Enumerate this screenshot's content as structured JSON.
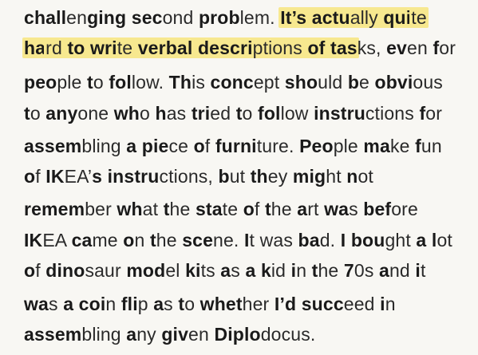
{
  "paragraph": {
    "lines": [
      [
        {
          "t": "chall",
          "b": true
        },
        {
          "t": "en",
          "b": false
        },
        {
          "t": "ging ",
          "b": true
        },
        {
          "t": "sec",
          "b": true
        },
        {
          "t": "ond ",
          "b": false
        },
        {
          "t": "prob",
          "b": true
        },
        {
          "t": "lem. ",
          "b": false
        },
        {
          "t": "It’s ",
          "b": true,
          "h": true
        },
        {
          "t": "actu",
          "b": true,
          "h": true
        },
        {
          "t": "ally ",
          "b": false,
          "h": true
        },
        {
          "t": "qui",
          "b": true,
          "h": true
        },
        {
          "t": "te",
          "b": false,
          "h": true
        }
      ],
      [
        {
          "t": "ha",
          "b": true,
          "h": true
        },
        {
          "t": "rd ",
          "b": false,
          "h": true
        },
        {
          "t": "to ",
          "b": true,
          "h": true
        },
        {
          "t": "wri",
          "b": true,
          "h": true
        },
        {
          "t": "te ",
          "b": false,
          "h": true
        },
        {
          "t": "verbal ",
          "b": true,
          "h": true
        },
        {
          "t": "descri",
          "b": true,
          "h": true
        },
        {
          "t": "ptions ",
          "b": false,
          "h": true
        },
        {
          "t": "of ",
          "b": true,
          "h": true
        },
        {
          "t": "tas",
          "b": true,
          "h": true
        },
        {
          "t": "ks, ",
          "b": false
        },
        {
          "t": "ev",
          "b": true
        },
        {
          "t": "en ",
          "b": false
        },
        {
          "t": "f",
          "b": true
        },
        {
          "t": "or",
          "b": false
        }
      ],
      [
        {
          "t": "peo",
          "b": true
        },
        {
          "t": "ple ",
          "b": false
        },
        {
          "t": "t",
          "b": true
        },
        {
          "t": "o ",
          "b": false
        },
        {
          "t": "fol",
          "b": true
        },
        {
          "t": "low. ",
          "b": false
        },
        {
          "t": "Th",
          "b": true
        },
        {
          "t": "is ",
          "b": false
        },
        {
          "t": "conc",
          "b": true
        },
        {
          "t": "ept ",
          "b": false
        },
        {
          "t": "sho",
          "b": true
        },
        {
          "t": "uld ",
          "b": false
        },
        {
          "t": "b",
          "b": true
        },
        {
          "t": "e ",
          "b": false
        },
        {
          "t": "obvi",
          "b": true
        },
        {
          "t": "ous",
          "b": false
        }
      ],
      [
        {
          "t": "t",
          "b": true
        },
        {
          "t": "o ",
          "b": false
        },
        {
          "t": "any",
          "b": true
        },
        {
          "t": "one ",
          "b": false
        },
        {
          "t": "wh",
          "b": true
        },
        {
          "t": "o ",
          "b": false
        },
        {
          "t": "h",
          "b": true
        },
        {
          "t": "as ",
          "b": false
        },
        {
          "t": "tri",
          "b": true
        },
        {
          "t": "ed ",
          "b": false
        },
        {
          "t": "t",
          "b": true
        },
        {
          "t": "o ",
          "b": false
        },
        {
          "t": "fol",
          "b": true
        },
        {
          "t": "low ",
          "b": false
        },
        {
          "t": "instru",
          "b": true
        },
        {
          "t": "ctions ",
          "b": false
        },
        {
          "t": "f",
          "b": true
        },
        {
          "t": "or",
          "b": false
        }
      ],
      [
        {
          "t": "assem",
          "b": true
        },
        {
          "t": "bling ",
          "b": false
        },
        {
          "t": "a ",
          "b": true
        },
        {
          "t": "pie",
          "b": true
        },
        {
          "t": "ce ",
          "b": false
        },
        {
          "t": "o",
          "b": true
        },
        {
          "t": "f ",
          "b": false
        },
        {
          "t": "furni",
          "b": true
        },
        {
          "t": "ture. ",
          "b": false
        },
        {
          "t": "Peo",
          "b": true
        },
        {
          "t": "ple ",
          "b": false
        },
        {
          "t": "ma",
          "b": true
        },
        {
          "t": "ke ",
          "b": false
        },
        {
          "t": "f",
          "b": true
        },
        {
          "t": "un",
          "b": false
        }
      ],
      [
        {
          "t": "o",
          "b": true
        },
        {
          "t": "f ",
          "b": false
        },
        {
          "t": "IK",
          "b": true
        },
        {
          "t": "EA’",
          "b": false
        },
        {
          "t": "s ",
          "b": true
        },
        {
          "t": "instru",
          "b": true
        },
        {
          "t": "ctions, ",
          "b": false
        },
        {
          "t": "b",
          "b": true
        },
        {
          "t": "ut ",
          "b": false
        },
        {
          "t": "th",
          "b": true
        },
        {
          "t": "ey ",
          "b": false
        },
        {
          "t": "mig",
          "b": true
        },
        {
          "t": "ht ",
          "b": false
        },
        {
          "t": "n",
          "b": true
        },
        {
          "t": "ot",
          "b": false
        }
      ],
      [
        {
          "t": "remem",
          "b": true
        },
        {
          "t": "ber ",
          "b": false
        },
        {
          "t": "wh",
          "b": true
        },
        {
          "t": "at ",
          "b": false
        },
        {
          "t": "t",
          "b": true
        },
        {
          "t": "he ",
          "b": false
        },
        {
          "t": "sta",
          "b": true
        },
        {
          "t": "te ",
          "b": false
        },
        {
          "t": "o",
          "b": true
        },
        {
          "t": "f ",
          "b": false
        },
        {
          "t": "t",
          "b": true
        },
        {
          "t": "he ",
          "b": false
        },
        {
          "t": "a",
          "b": true
        },
        {
          "t": "rt ",
          "b": false
        },
        {
          "t": "wa",
          "b": true
        },
        {
          "t": "s ",
          "b": false
        },
        {
          "t": "bef",
          "b": true
        },
        {
          "t": "ore",
          "b": false
        }
      ],
      [
        {
          "t": "IK",
          "b": true
        },
        {
          "t": "EA ",
          "b": false
        },
        {
          "t": "ca",
          "b": true
        },
        {
          "t": "me ",
          "b": false
        },
        {
          "t": "o",
          "b": true
        },
        {
          "t": "n ",
          "b": false
        },
        {
          "t": "t",
          "b": true
        },
        {
          "t": "he ",
          "b": false
        },
        {
          "t": "sce",
          "b": true
        },
        {
          "t": "ne. ",
          "b": false
        },
        {
          "t": "I",
          "b": true
        },
        {
          "t": "t ",
          "b": false
        },
        {
          "t": "was ",
          "b": false
        },
        {
          "t": "ba",
          "b": true
        },
        {
          "t": "d. ",
          "b": false
        },
        {
          "t": "I ",
          "b": true
        },
        {
          "t": "bou",
          "b": true
        },
        {
          "t": "ght ",
          "b": false
        },
        {
          "t": "a ",
          "b": true
        },
        {
          "t": "l",
          "b": true
        },
        {
          "t": "ot",
          "b": false
        }
      ],
      [
        {
          "t": "o",
          "b": true
        },
        {
          "t": "f ",
          "b": false
        },
        {
          "t": "dino",
          "b": true
        },
        {
          "t": "saur ",
          "b": false
        },
        {
          "t": "mod",
          "b": true
        },
        {
          "t": "el ",
          "b": false
        },
        {
          "t": "ki",
          "b": true
        },
        {
          "t": "ts ",
          "b": false
        },
        {
          "t": "a",
          "b": true
        },
        {
          "t": "s ",
          "b": false
        },
        {
          "t": "a ",
          "b": true
        },
        {
          "t": "k",
          "b": true
        },
        {
          "t": "id ",
          "b": false
        },
        {
          "t": "i",
          "b": true
        },
        {
          "t": "n ",
          "b": false
        },
        {
          "t": "t",
          "b": true
        },
        {
          "t": "he ",
          "b": false
        },
        {
          "t": "7",
          "b": true
        },
        {
          "t": "0s ",
          "b": false
        },
        {
          "t": "a",
          "b": true
        },
        {
          "t": "nd ",
          "b": false
        },
        {
          "t": "i",
          "b": true
        },
        {
          "t": "t",
          "b": false
        }
      ],
      [
        {
          "t": "wa",
          "b": true
        },
        {
          "t": "s ",
          "b": false
        },
        {
          "t": "a ",
          "b": true
        },
        {
          "t": "coi",
          "b": true
        },
        {
          "t": "n ",
          "b": false
        },
        {
          "t": "fli",
          "b": true
        },
        {
          "t": "p ",
          "b": false
        },
        {
          "t": "a",
          "b": true
        },
        {
          "t": "s ",
          "b": false
        },
        {
          "t": "t",
          "b": true
        },
        {
          "t": "o ",
          "b": false
        },
        {
          "t": "whet",
          "b": true
        },
        {
          "t": "her ",
          "b": false
        },
        {
          "t": "I’d ",
          "b": true
        },
        {
          "t": "succ",
          "b": true
        },
        {
          "t": "eed ",
          "b": false
        },
        {
          "t": "i",
          "b": true
        },
        {
          "t": "n",
          "b": false
        }
      ],
      [
        {
          "t": "assem",
          "b": true
        },
        {
          "t": "bling ",
          "b": false
        },
        {
          "t": "a",
          "b": true
        },
        {
          "t": "ny ",
          "b": false
        },
        {
          "t": "giv",
          "b": true
        },
        {
          "t": "en ",
          "b": false
        },
        {
          "t": "Diplo",
          "b": true
        },
        {
          "t": "docus.",
          "b": false
        }
      ]
    ]
  },
  "colors": {
    "background": "#f8f7f3",
    "text": "#1a1a1a",
    "highlight": "#f7e88f"
  }
}
